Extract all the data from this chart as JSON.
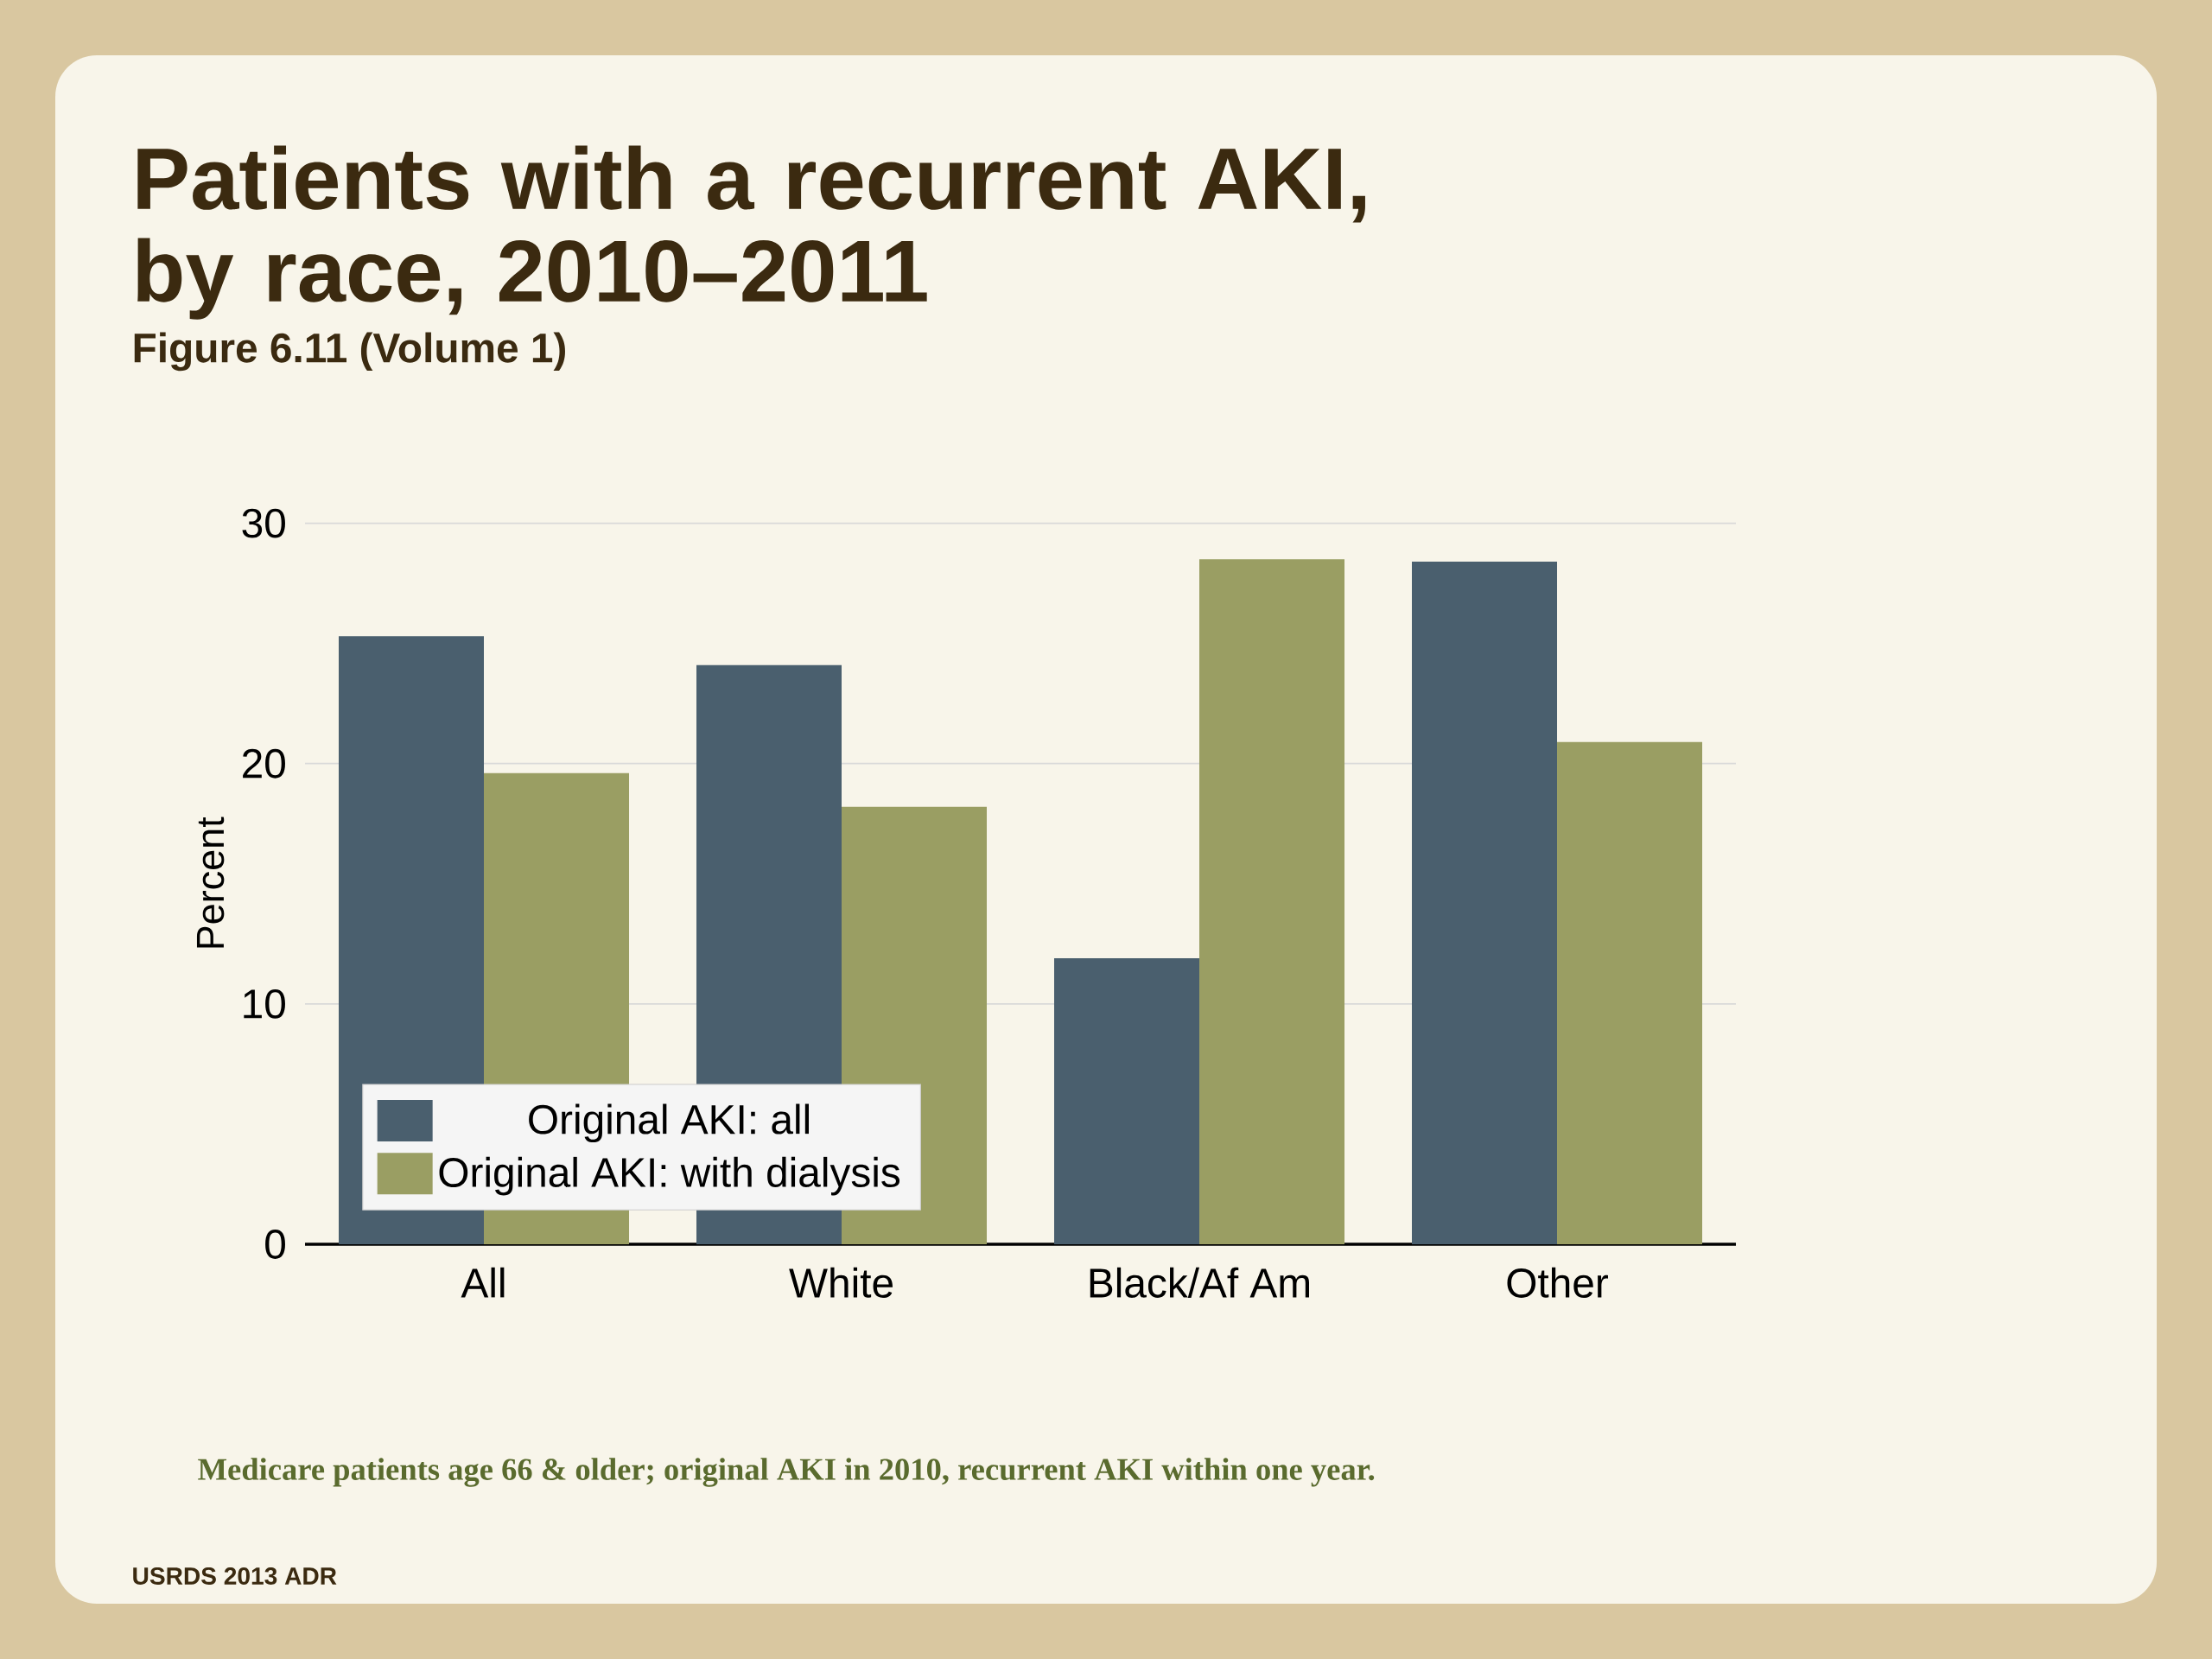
{
  "chart_data": {
    "type": "bar",
    "title": "Patients with a recurrent AKI, by race, 2010–2011",
    "subtitle": "Figure 6.11 (Volume 1)",
    "ylabel": "Percent",
    "categories": [
      "All",
      "White",
      "Black/Af Am",
      "Other"
    ],
    "series": [
      {
        "name": "Original AKI: all",
        "color": "#4a5f6e",
        "values": [
          25.3,
          24.1,
          11.9,
          28.4
        ]
      },
      {
        "name": "Original AKI: with dialysis",
        "color": "#9a9e63",
        "values": [
          19.6,
          18.2,
          28.5,
          20.9
        ]
      }
    ],
    "ylim": [
      0,
      30
    ],
    "yticks": [
      0,
      10,
      20,
      30
    ],
    "grid": "y",
    "legend": "bottom left",
    "annotations": [
      "Medicare patients age 66 & older; original AKI in 2010, recurrent AKI within one year.",
      "USRDS 2013 ADR"
    ]
  }
}
